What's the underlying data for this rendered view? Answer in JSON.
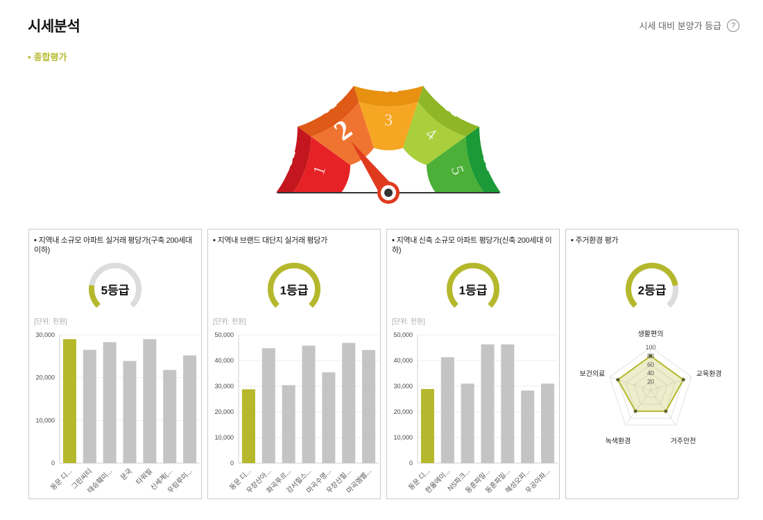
{
  "header": {
    "title": "시세분석",
    "grade_link": "시세 대비 분양가 등급",
    "help_icon": "?"
  },
  "section": {
    "label": "종합평가"
  },
  "gauge": {
    "outer_labels": [
      "1등급",
      "2등급",
      "3등급",
      "4등급",
      "5등급"
    ],
    "inner_labels": [
      "1",
      "2",
      "3",
      "4",
      "5"
    ],
    "selected": 2,
    "outer_colors": [
      "#c3161f",
      "#de5a16",
      "#e8900f",
      "#8fb626",
      "#1b9a37"
    ],
    "inner_colors": [
      "#e62227",
      "#ef7431",
      "#f6a622",
      "#a9cf3c",
      "#4caf38"
    ],
    "needle_icon": "gauge-needle-icon"
  },
  "cards": [
    {
      "title": "지역내 소규모 아파트 실거래 평당가(구축 200세대 이하)",
      "grade": "5등급",
      "grade_fraction": 0.2,
      "unit": "[단위: 천원]",
      "chart_data": {
        "type": "bar",
        "categories": [
          "동문 디...",
          "그린씨티",
          "태승훼미...",
          "문국",
          "타워빌",
          "신세계(...",
          "우림루미..."
        ],
        "values": [
          29000,
          26500,
          28300,
          23900,
          29000,
          21800,
          25200
        ],
        "highlight_index": 0,
        "ylim": [
          0,
          30000
        ],
        "yticks": [
          0,
          10000,
          20000,
          30000
        ],
        "ytick_labels": [
          "0",
          "10,000",
          "20,000",
          "30,000"
        ]
      }
    },
    {
      "title": "지역내 브랜드 대단지 실거래 평당가",
      "grade": "1등급",
      "grade_fraction": 1.0,
      "unit": "[단위: 천원]",
      "chart_data": {
        "type": "bar",
        "categories": [
          "동문 디...",
          "우장산아...",
          "화곡푸르...",
          "강서힐스...",
          "마곡수명...",
          "우장산힐...",
          "마곡엠벨..."
        ],
        "values": [
          28800,
          44800,
          30400,
          45800,
          35400,
          46900,
          44100
        ],
        "highlight_index": 0,
        "ylim": [
          0,
          50000
        ],
        "yticks": [
          0,
          10000,
          20000,
          30000,
          40000,
          50000
        ],
        "ytick_labels": [
          "0",
          "10,000",
          "20,000",
          "30,000",
          "40,000",
          "50,000"
        ]
      }
    },
    {
      "title": "지역내 신축 소규모 아파트 평당가(신축 200세대 이하)",
      "grade": "1등급",
      "grade_fraction": 1.0,
      "unit": "[단위: 천원]",
      "chart_data": {
        "type": "bar",
        "categories": [
          "동문 디...",
          "한울에이...",
          "NS파크...",
          "동훈파밀...",
          "동훈파밀...",
          "혜성오피...",
          "우공아파..."
        ],
        "values": [
          28900,
          41300,
          31000,
          46300,
          46300,
          28300,
          31000
        ],
        "highlight_index": 0,
        "ylim": [
          0,
          50000
        ],
        "yticks": [
          0,
          10000,
          20000,
          30000,
          40000,
          50000
        ],
        "ytick_labels": [
          "0",
          "10,000",
          "20,000",
          "30,000",
          "40,000",
          "50,000"
        ]
      }
    },
    {
      "title": "주거환경 평가",
      "grade": "2등급",
      "grade_fraction": 0.8,
      "chart_data": {
        "type": "radar",
        "axes": [
          "생활편의",
          "교육환경",
          "거주안전",
          "녹색환경",
          "보건의료"
        ],
        "values": [
          80,
          80,
          60,
          60,
          80
        ],
        "rlim": [
          0,
          100
        ],
        "rticks": [
          20,
          40,
          60,
          80,
          100
        ],
        "rtick_labels": [
          "20",
          "40",
          "60",
          "80",
          "100"
        ]
      }
    }
  ],
  "colors": {
    "accent": "#b5b82c",
    "bar_default": "#c4c4c4",
    "donut_track": "#dcdcdc"
  }
}
